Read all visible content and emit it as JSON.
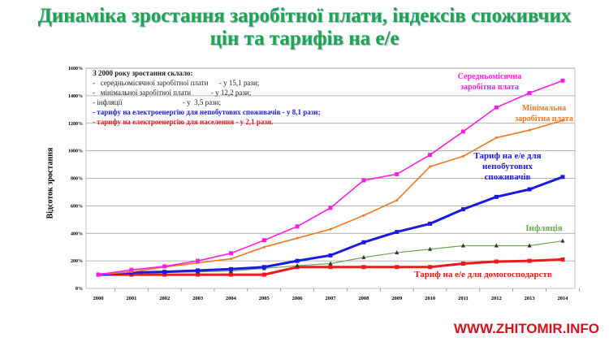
{
  "title_line1": "Динаміка зростання заробітної плати, індексів споживчих",
  "title_line2": "цін та тарифів на е/е",
  "watermark": "WWW.ZHITOMIR.INFO",
  "notes": {
    "heading": "З 2000 року зростання склало:",
    "lines": [
      "-   середньомісячної заробітної плати      - у 15,1 рази;",
      "-   мінімальної заробітної плати           - у 12,2 рази;",
      "- інфляції                                 - у  3,5 рази;"
    ],
    "blue": "- тарифу на електроенергію для непобутових споживачів  - у  8,1 рази;",
    "red": "- тарифу на електроенергію для населення - у 2,1 рази."
  },
  "chart_data": {
    "type": "line",
    "ylabel": "Відсоток зростання",
    "xlabel": "",
    "ylim": [
      0,
      1600
    ],
    "yticks": [
      "0%",
      "200%",
      "400%",
      "600%",
      "800%",
      "1000%",
      "1200%",
      "1400%",
      "1600%"
    ],
    "grid": true,
    "x": [
      "2000",
      "2001",
      "2002",
      "2003",
      "2004",
      "2005",
      "2006",
      "2007",
      "2008",
      "2009",
      "2010",
      "2011",
      "2012",
      "2013",
      "2014"
    ],
    "series": [
      {
        "name": "Середньомісячна заробітна плата",
        "color": "#ff1ee0",
        "values": [
          100,
          135,
          160,
          200,
          255,
          350,
          450,
          585,
          785,
          830,
          970,
          1140,
          1315,
          1420,
          1510
        ]
      },
      {
        "name": "Мінімальна заробітна плата",
        "color": "#f07820",
        "values": [
          100,
          120,
          155,
          185,
          215,
          300,
          365,
          430,
          530,
          640,
          885,
          960,
          1095,
          1150,
          1220
        ]
      },
      {
        "name": "Тариф на е/е для непобутових споживачів",
        "color": "#1a1ae0",
        "values": [
          100,
          115,
          120,
          130,
          140,
          155,
          200,
          240,
          335,
          410,
          470,
          575,
          665,
          720,
          810
        ]
      },
      {
        "name": "Інфляція",
        "color": "#6aa84f",
        "values": [
          100,
          110,
          115,
          120,
          125,
          145,
          165,
          180,
          225,
          260,
          285,
          310,
          310,
          310,
          345
        ]
      },
      {
        "name": "Тариф на е/е для домогосподарств",
        "color": "#f01818",
        "values": [
          100,
          100,
          100,
          100,
          100,
          100,
          155,
          155,
          155,
          155,
          155,
          180,
          195,
          200,
          210
        ]
      }
    ]
  }
}
